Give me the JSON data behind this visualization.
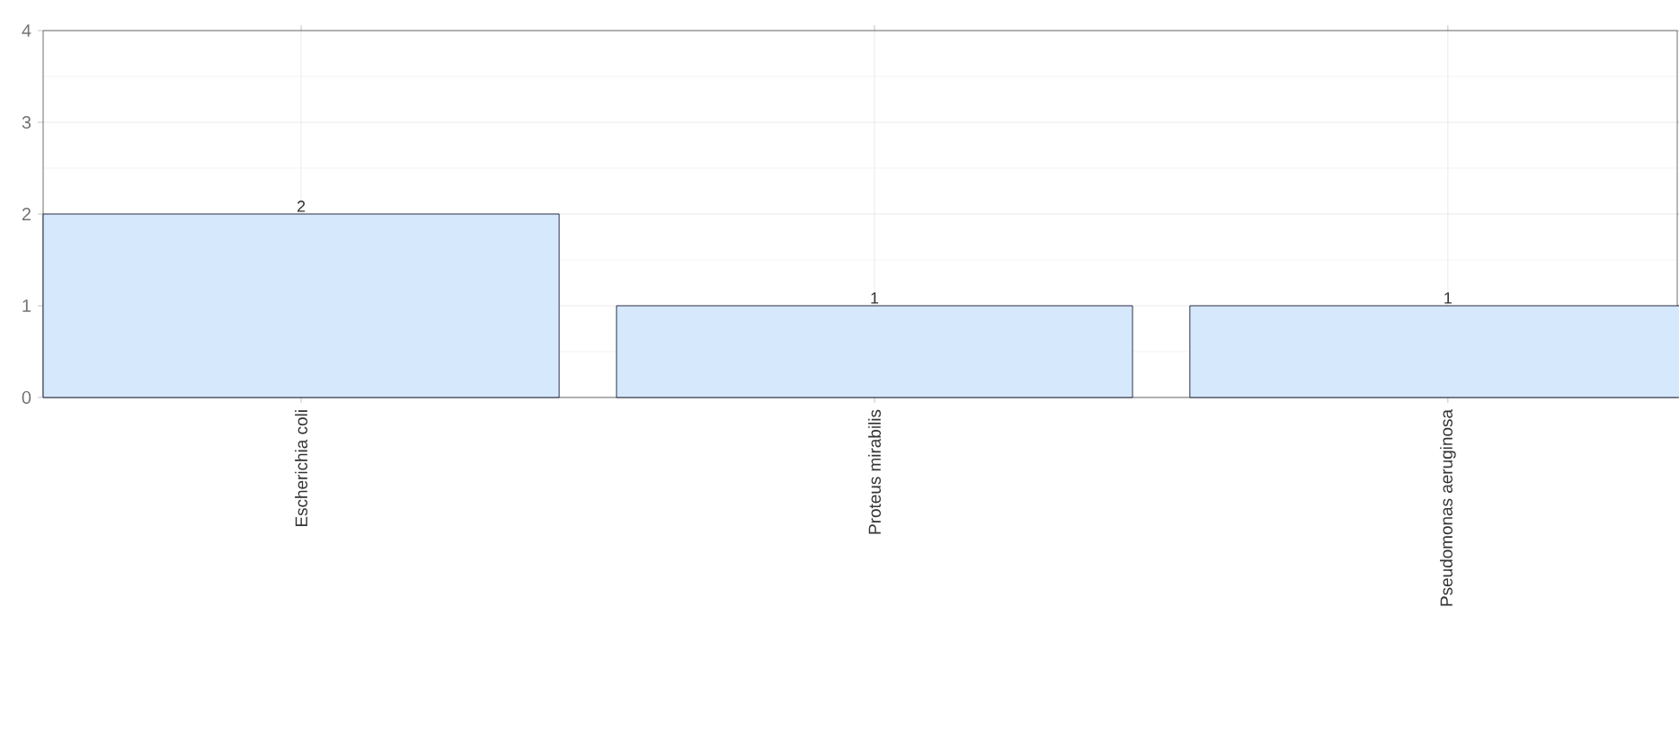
{
  "chart_data": {
    "type": "bar",
    "categories": [
      "Escherichia coli",
      "Proteus mirabilis",
      "Pseudomonas aeruginosa"
    ],
    "values": [
      2,
      1,
      1
    ],
    "color": "#d6e8fb",
    "ylim": [
      0,
      4
    ],
    "yticks": [
      0,
      1,
      2,
      3,
      4
    ],
    "grid": true,
    "data_labels": true
  }
}
